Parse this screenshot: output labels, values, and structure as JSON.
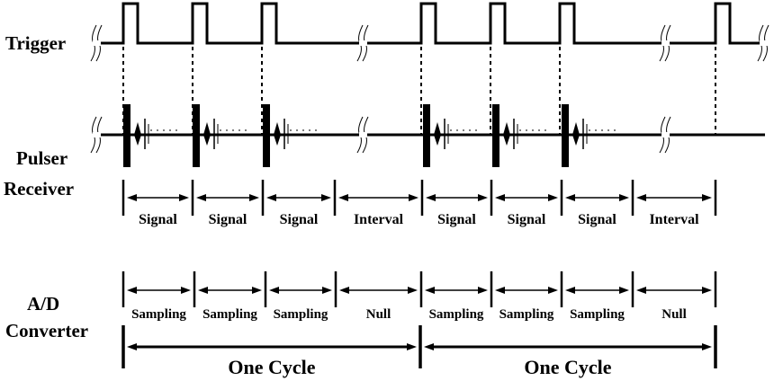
{
  "row_labels": {
    "trigger": "Trigger",
    "pulser_line1": "Pulser",
    "pulser_line2": "Receiver",
    "ad_line1": "A/D",
    "ad_line2": "Converter"
  },
  "pulser_segments": [
    "Signal",
    "Signal",
    "Signal",
    "Interval",
    "Signal",
    "Signal",
    "Signal",
    "Interval"
  ],
  "converter_segments": [
    "Sampling",
    "Sampling",
    "Sampling",
    "Null",
    "Sampling",
    "Sampling",
    "Sampling",
    "Null"
  ],
  "cycle_segments": [
    "One Cycle",
    "One Cycle"
  ],
  "colors": {
    "ink": "#000000",
    "background": "#ffffff"
  }
}
